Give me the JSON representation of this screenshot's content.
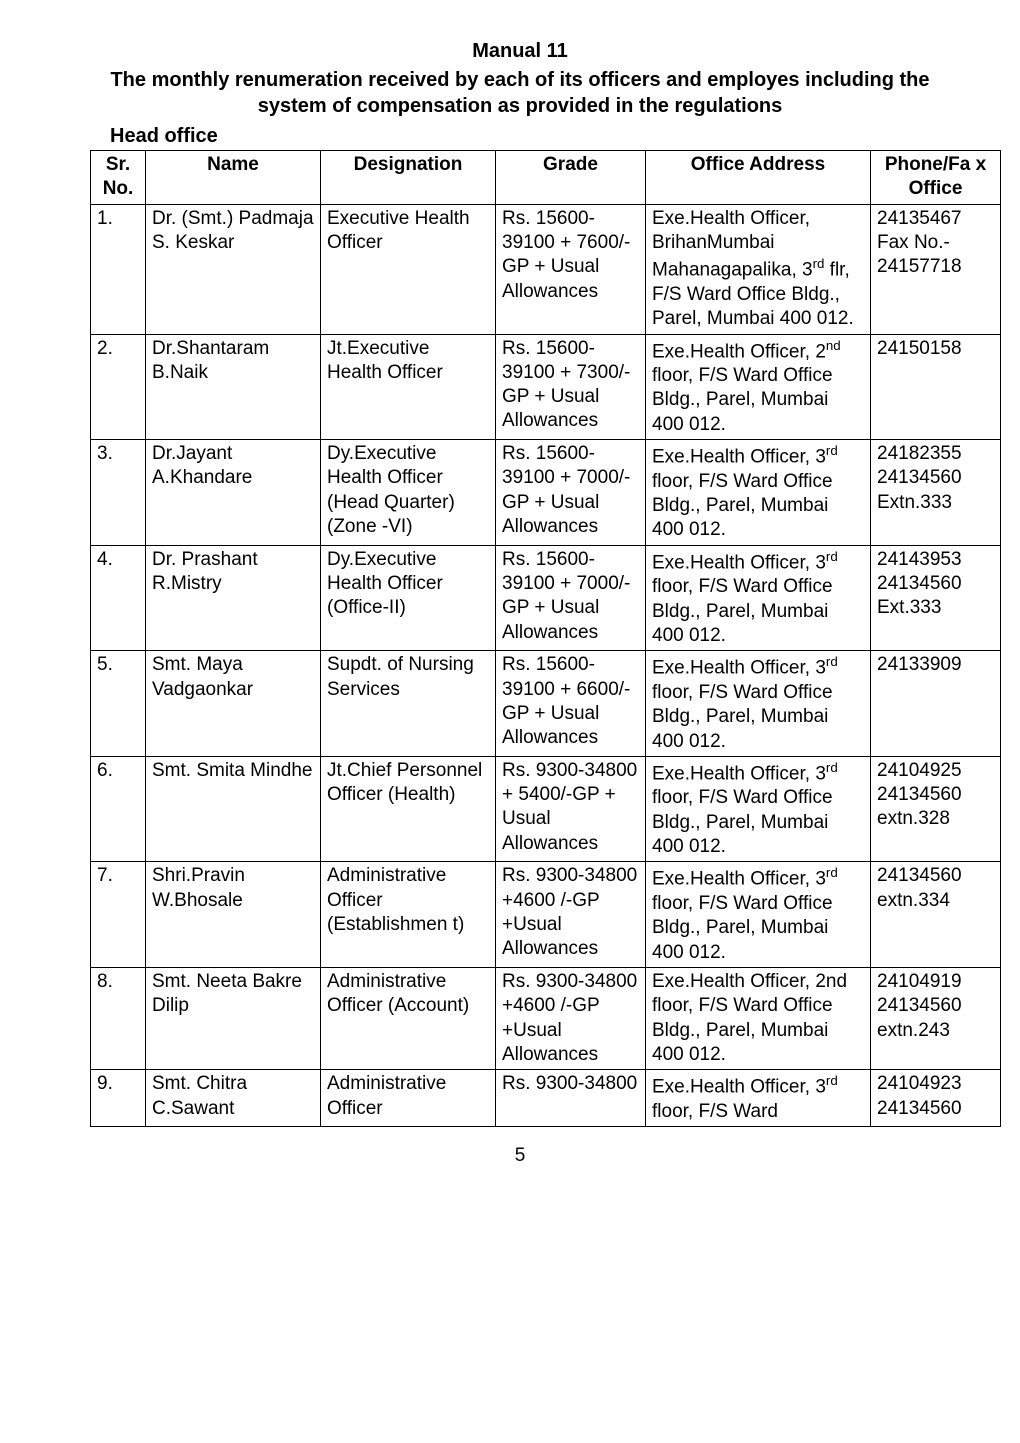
{
  "doc": {
    "title": "Manual 11",
    "subtitle": "The monthly renumeration received by each of its officers and employes including the system of compensation as provided in the regulations",
    "section_heading": "Head office",
    "page_number": "5"
  },
  "table": {
    "headers": {
      "sr": "Sr. No.",
      "name": "Name",
      "designation": "Designation",
      "grade": "Grade",
      "address": "Office Address",
      "phone": "Phone/Fa x Office"
    },
    "rows": [
      {
        "sr": "1.",
        "name": "Dr. (Smt.) Padmaja S. Keskar",
        "designation": "Executive Health Officer",
        "grade": "Rs. 15600-39100 + 7600/-GP + Usual Allowances",
        "address": "Exe.Health Officer, BrihanMumbai Mahanagapalika, 3<sup>rd</sup> flr, F/S Ward Office Bldg., Parel, Mumbai 400 012.",
        "phone": "24135467 Fax No.- 24157718"
      },
      {
        "sr": "2.",
        "name": "Dr.Shantaram B.Naik",
        "designation": "Jt.Executive Health Officer",
        "grade": "Rs. 15600-39100 + 7300/-GP + Usual Allowances",
        "address": "Exe.Health Officer, 2<sup>nd</sup>  floor, F/S Ward Office Bldg., Parel, Mumbai 400 012.",
        "phone": "24150158"
      },
      {
        "sr": "3.",
        "name": "Dr.Jayant A.Khandare",
        "designation": "Dy.Executive Health Officer (Head Quarter) (Zone -VI)",
        "grade": "Rs. 15600-39100 + 7000/-GP + Usual Allowances",
        "address": "Exe.Health Officer, 3<sup>rd</sup> floor, F/S Ward Office Bldg., Parel, Mumbai 400 012.",
        "phone": "24182355 24134560 Extn.333"
      },
      {
        "sr": "4.",
        "name": "Dr. Prashant R.Mistry",
        "designation": "Dy.Executive Health Officer (Office-II)",
        "grade": "Rs. 15600-39100 + 7000/-GP + Usual Allowances",
        "address": "Exe.Health Officer, 3<sup>rd</sup> floor, F/S Ward Office Bldg., Parel, Mumbai 400 012.",
        "phone": "24143953 24134560 Ext.333"
      },
      {
        "sr": "5.",
        "name": "Smt. Maya Vadgaonkar",
        "designation": "Supdt. of Nursing Services",
        "grade": "Rs. 15600-39100 + 6600/-GP + Usual Allowances",
        "address": "Exe.Health Officer, 3<sup>rd</sup> floor, F/S Ward Office Bldg., Parel, Mumbai 400 012.",
        "phone": "24133909"
      },
      {
        "sr": "6.",
        "name": "Smt. Smita Mindhe",
        "designation": "Jt.Chief Personnel Officer (Health)",
        "grade": "Rs. 9300-34800 + 5400/-GP + Usual Allowances",
        "address": "Exe.Health Officer, 3<sup>rd</sup> floor, F/S Ward Office Bldg., Parel, Mumbai 400 012.",
        "phone": "24104925 24134560 extn.328"
      },
      {
        "sr": "7.",
        "name": "Shri.Pravin W.Bhosale",
        "designation": "Administrative Officer (Establishmen t)",
        "grade": "Rs. 9300-34800 +4600 /-GP +Usual Allowances",
        "address": "Exe.Health Officer, 3<sup>rd</sup> floor, F/S Ward Office Bldg., Parel, Mumbai 400 012.",
        "phone": "24134560 extn.334"
      },
      {
        "sr": "8.",
        "name": "Smt. Neeta Bakre Dilip",
        "designation": "Administrative Officer (Account)",
        "grade": "Rs. 9300-34800 +4600 /-GP +Usual Allowances",
        "address": "Exe.Health Officer, 2nd floor, F/S Ward Office Bldg., Parel, Mumbai 400 012.",
        "phone": "24104919 24134560 extn.243"
      },
      {
        "sr": "9.",
        "name": "Smt. Chitra C.Sawant",
        "designation": "Administrative Officer",
        "grade": "Rs. 9300-34800",
        "address": "Exe.Health Officer, 3<sup>rd</sup> floor, F/S Ward",
        "phone": "24104923 24134560"
      }
    ]
  }
}
